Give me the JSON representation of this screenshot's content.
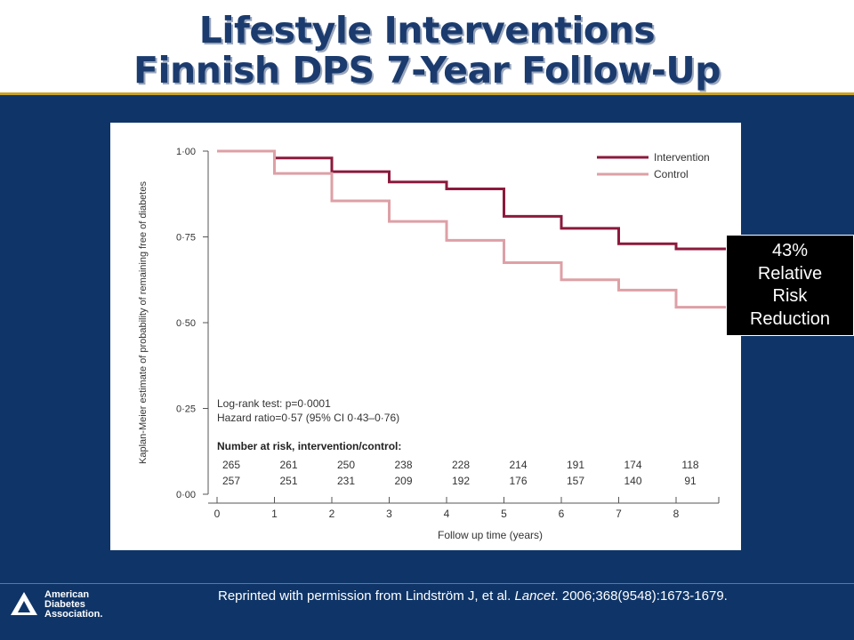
{
  "slide": {
    "title_line1": "Lifestyle Interventions",
    "title_line2": "Finnish DPS 7-Year Follow-Up",
    "callout": [
      "43%",
      "Relative",
      "Risk",
      "Reduction"
    ],
    "reference_prefix": "Reprinted with permission from Lindström J, et al. ",
    "reference_journal": "Lancet",
    "reference_suffix": ". 2006;368(9548):1673-1679.",
    "logo_lines": [
      "American",
      "Diabetes",
      "Association."
    ],
    "colors": {
      "title": "#1b3b6e",
      "background": "#0f3568",
      "rule": "#c9a227"
    }
  },
  "chart_data": {
    "type": "line",
    "step": true,
    "xlabel": "Follow up time (years)",
    "ylabel": "Kaplan-Meier estimate of probability of remaining free of diabetes",
    "xlim": [
      0,
      8.9
    ],
    "ylim": [
      0,
      1
    ],
    "x_ticks": [
      "0",
      "1",
      "2",
      "3",
      "4",
      "5",
      "6",
      "7",
      "8"
    ],
    "y_ticks": [
      "0·00",
      "0·25",
      "0·50",
      "0·75",
      "1·00"
    ],
    "legend_position": "top-right",
    "series": [
      {
        "name": "Intervention",
        "color": "#8b1a3c",
        "x": [
          0,
          1,
          2,
          3,
          4,
          5,
          6,
          7,
          8,
          8.9
        ],
        "y": [
          1.0,
          0.98,
          0.94,
          0.91,
          0.89,
          0.81,
          0.775,
          0.73,
          0.715,
          0.715
        ]
      },
      {
        "name": "Control",
        "color": "#dda0a6",
        "x": [
          0,
          1,
          2,
          3,
          4,
          5,
          6,
          7,
          8,
          8.9
        ],
        "y": [
          1.0,
          0.935,
          0.855,
          0.795,
          0.74,
          0.675,
          0.625,
          0.595,
          0.545,
          0.545
        ]
      }
    ],
    "annotations": {
      "logrank": "Log-rank test: p=0·0001",
      "hazard": "Hazard ratio=0·57 (95% CI 0·43–0·76)"
    },
    "at_risk": {
      "title": "Number at risk, intervention/control:",
      "intervention": [
        "265",
        "261",
        "250",
        "238",
        "228",
        "214",
        "191",
        "174",
        "118"
      ],
      "control": [
        "257",
        "251",
        "231",
        "209",
        "192",
        "176",
        "157",
        "140",
        "91"
      ]
    }
  }
}
